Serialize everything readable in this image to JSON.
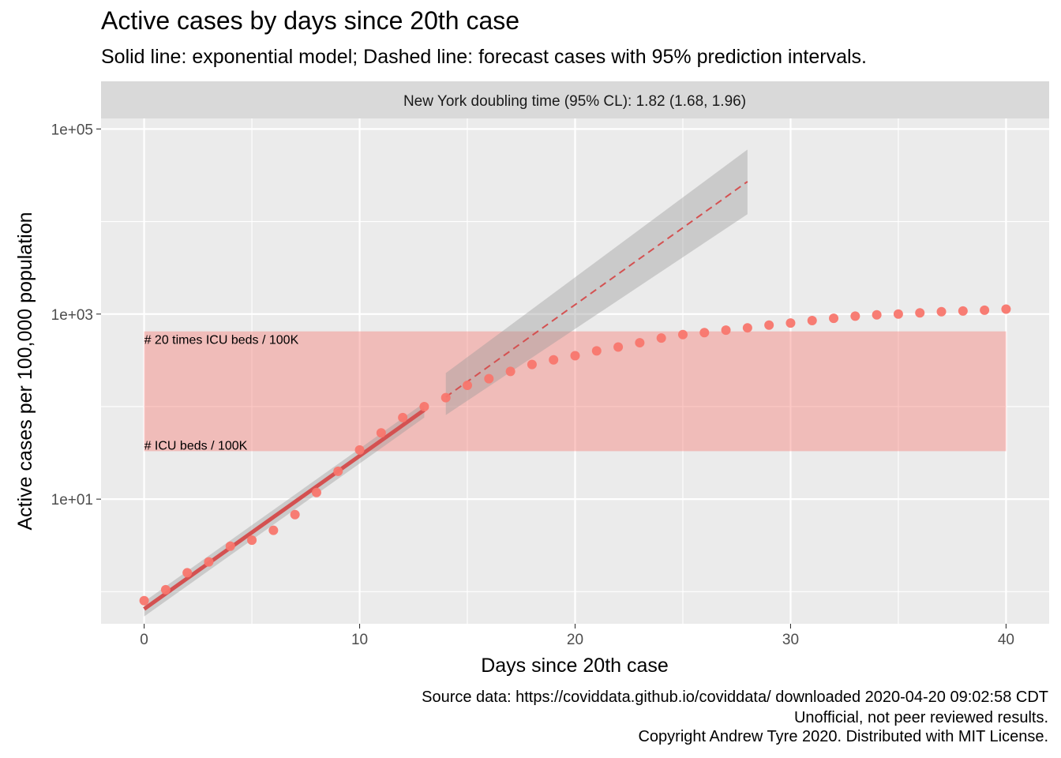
{
  "title": "Active cases by days since 20th case",
  "subtitle": "Solid line: exponential model; Dashed line: forecast cases with 95% prediction intervals.",
  "captions": [
    "Source data: https://coviddata.github.io/coviddata/ downloaded  2020-04-20 09:02:58 CDT",
    "Unofficial, not peer reviewed results.",
    "Copyright Andrew Tyre 2020. Distributed with MIT License."
  ],
  "chart_data": {
    "type": "scatter",
    "facet_label": "New York doubling time (95% CL): 1.82 (1.68, 1.96)",
    "xlabel": "Days since 20th case",
    "ylabel": "Active cases per 100,000 population",
    "y_scale": "log10",
    "xlim": [
      -2,
      42
    ],
    "ylim": [
      0.45,
      130000
    ],
    "x_ticks": [
      0,
      10,
      20,
      30,
      40
    ],
    "x_tick_labels": [
      "0",
      "10",
      "20",
      "30",
      "40"
    ],
    "y_ticks": [
      10,
      1000,
      100000
    ],
    "y_tick_labels": [
      "1e+01",
      "1e+03",
      "1e+05"
    ],
    "grid": true,
    "colors": {
      "points": "#F8766D",
      "fit_line": "#D45151",
      "band": "#999999",
      "icu_band": "#F8766D",
      "panel": "#EBEBEB",
      "strip": "#D9D9D9"
    },
    "icu_band": {
      "lower": 33,
      "upper": 650,
      "x_range": [
        0,
        40
      ],
      "lower_label": "# ICU beds / 100K",
      "upper_label": "# 20 times ICU beds / 100K"
    },
    "observed": {
      "x": [
        0,
        1,
        2,
        3,
        4,
        5,
        6,
        7,
        8,
        9,
        10,
        11,
        12,
        13,
        14,
        15,
        16,
        17,
        18,
        19,
        20,
        21,
        22,
        23,
        24,
        25,
        26,
        27,
        28,
        29,
        30,
        31,
        32,
        33,
        34,
        35,
        36,
        37,
        38,
        39,
        40
      ],
      "y": [
        0.8,
        1.05,
        1.6,
        2.1,
        3.1,
        3.6,
        4.6,
        6.8,
        11.8,
        20,
        34,
        52,
        76,
        100,
        125,
        170,
        200,
        240,
        285,
        320,
        355,
        400,
        440,
        490,
        550,
        600,
        630,
        670,
        710,
        760,
        800,
        850,
        900,
        950,
        980,
        1000,
        1030,
        1060,
        1080,
        1100,
        1130
      ]
    },
    "model_fit": {
      "x": [
        0,
        13
      ],
      "y": [
        0.65,
        92
      ],
      "ci_lower": [
        0.54,
        76
      ],
      "ci_upper": [
        0.78,
        110
      ]
    },
    "forecast": {
      "x": [
        14,
        28
      ],
      "y": [
        127,
        27000
      ],
      "pi_lower": [
        81,
        12000
      ],
      "pi_upper": [
        230,
        60000
      ]
    }
  }
}
